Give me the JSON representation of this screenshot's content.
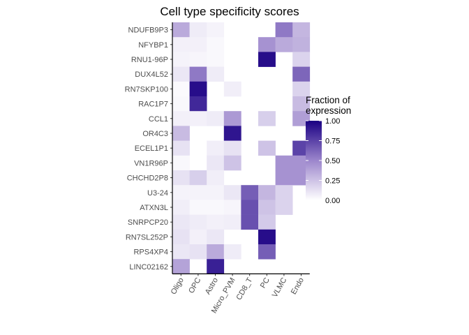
{
  "chart_data": {
    "type": "heatmap",
    "title": "Cell type specificity scores",
    "xlabel": "",
    "ylabel": "",
    "columns": [
      "Oligo",
      "OPC",
      "Astro",
      "Micro_PVM",
      "CD8_T",
      "PC",
      "VLMC",
      "Endo"
    ],
    "rows": [
      "NDUFB9P3",
      "NFYBP1",
      "RNU1-96P",
      "DUX4L52",
      "RN7SKP100",
      "RAC1P7",
      "CCL1",
      "OR4C3",
      "ECEL1P1",
      "VN1R96P",
      "CHCHD2P8",
      "U3-24",
      "ATXN3L",
      "SNRPCP20",
      "RN7SL252P",
      "RPS4XP4",
      "LINC02162"
    ],
    "values": [
      [
        0.35,
        0.08,
        0.05,
        null,
        null,
        null,
        0.55,
        0.3
      ],
      [
        0.06,
        0.06,
        0.03,
        null,
        null,
        0.45,
        0.35,
        0.32
      ],
      [
        0.05,
        0.04,
        0.03,
        null,
        null,
        0.95,
        null,
        0.18
      ],
      [
        0.1,
        0.55,
        0.08,
        null,
        null,
        null,
        null,
        0.62
      ],
      [
        0.02,
        0.95,
        null,
        0.07,
        null,
        null,
        null,
        0.18
      ],
      [
        0.03,
        0.85,
        null,
        null,
        null,
        null,
        null,
        0.28
      ],
      [
        0.06,
        0.06,
        0.08,
        0.42,
        null,
        0.2,
        null,
        0.4
      ],
      [
        0.28,
        null,
        null,
        0.92,
        null,
        null,
        null,
        null
      ],
      [
        0.12,
        null,
        0.07,
        0.12,
        null,
        0.25,
        null,
        0.75
      ],
      [
        0.03,
        null,
        0.1,
        0.25,
        null,
        null,
        0.45,
        0.45
      ],
      [
        0.12,
        0.2,
        0.07,
        null,
        null,
        null,
        0.45,
        0.45
      ],
      [
        0.05,
        0.05,
        0.05,
        0.1,
        0.65,
        0.3,
        0.18,
        null
      ],
      [
        0.07,
        0.03,
        0.03,
        0.04,
        0.7,
        0.25,
        0.18,
        null
      ],
      [
        0.1,
        0.08,
        0.06,
        0.07,
        0.7,
        0.22,
        null,
        null
      ],
      [
        0.12,
        0.06,
        0.1,
        null,
        null,
        0.95,
        null,
        null
      ],
      [
        0.1,
        0.12,
        0.35,
        0.08,
        null,
        0.65,
        null,
        null
      ],
      [
        0.38,
        null,
        0.88,
        null,
        null,
        null,
        null,
        null
      ]
    ],
    "legend": {
      "title": "Fraction of\nexpression",
      "ticks": [
        1.0,
        0.75,
        0.5,
        0.25,
        0.0
      ],
      "tick_labels": [
        "1.00",
        "0.75",
        "0.50",
        "0.25",
        "0.00"
      ],
      "color_low": "#ffffff",
      "color_high": "#1a0083",
      "placement": "right"
    },
    "grid": false
  }
}
